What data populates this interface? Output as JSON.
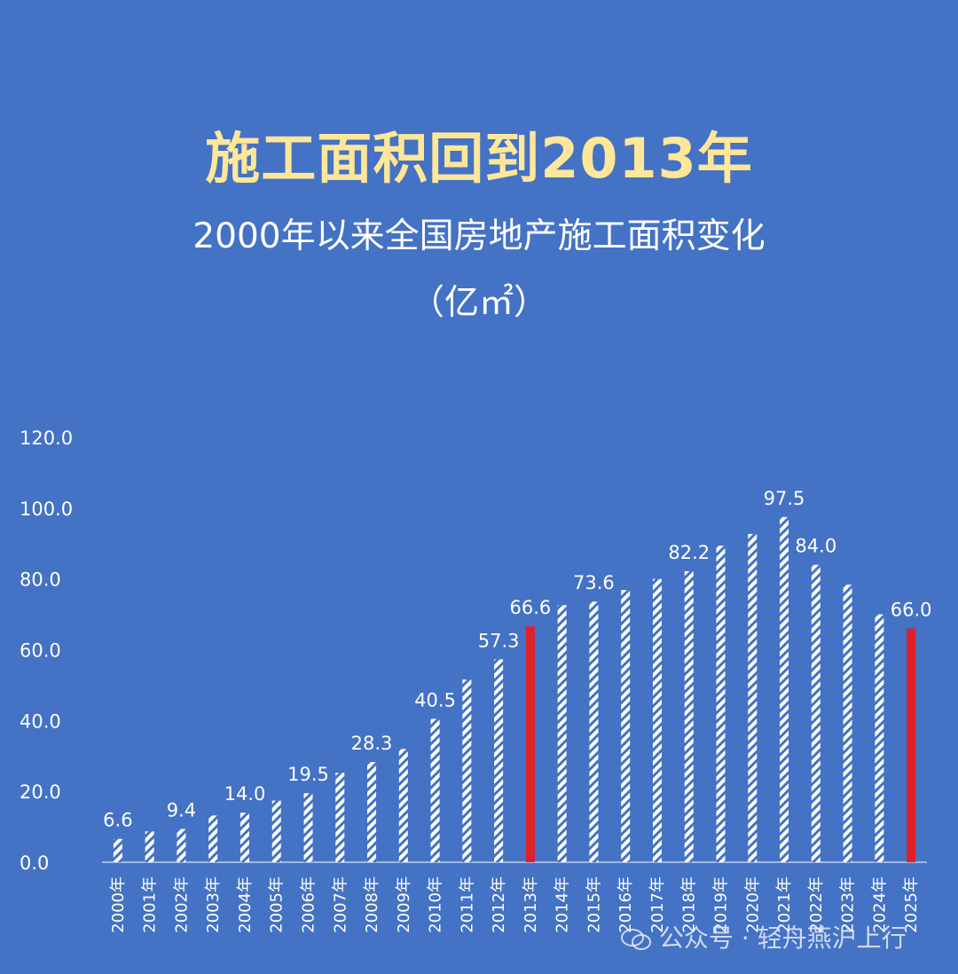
{
  "title": "施工面积回到2013年",
  "subtitle": "2000年以来全国房地产施工面积变化",
  "unit": "（亿㎡）",
  "watermark": "公众号 · 轻舟燕沪上行",
  "colors": {
    "background": "#4472C4",
    "title": "#FFE699",
    "bar_pattern": "#FFFFFF",
    "highlight": "#E0202A",
    "text": "#FFFFFF"
  },
  "chart_data": {
    "type": "bar",
    "categories": [
      "2000年",
      "2001年",
      "2002年",
      "2003年",
      "2004年",
      "2005年",
      "2006年",
      "2007年",
      "2008年",
      "2009年",
      "2010年",
      "2011年",
      "2012年",
      "2013年",
      "2014年",
      "2015年",
      "2016年",
      "2017年",
      "2018年",
      "2019年",
      "2020年",
      "2021年",
      "2022年",
      "2023年",
      "2024年",
      "2025年"
    ],
    "values": [
      6.6,
      8.7,
      9.4,
      13.2,
      14.0,
      17.4,
      19.5,
      25.3,
      28.3,
      32.0,
      40.5,
      51.6,
      57.3,
      66.6,
      72.6,
      73.6,
      76.9,
      80.0,
      82.2,
      89.4,
      92.7,
      97.5,
      84.0,
      78.4,
      70.0,
      66.0
    ],
    "data_labels": {
      "2000年": "6.6",
      "2002年": "9.4",
      "2004年": "14.0",
      "2006年": "19.5",
      "2008年": "28.3",
      "2010年": "40.5",
      "2012年": "57.3",
      "2013年": "66.6",
      "2015年": "73.6",
      "2018年": "82.2",
      "2021年": "97.5",
      "2022年": "84.0",
      "2025年": "66.0"
    },
    "highlighted": [
      "2013年",
      "2025年"
    ],
    "ylim": [
      0,
      120
    ],
    "yticks": [
      "0.0",
      "20.0",
      "40.0",
      "60.0",
      "80.0",
      "100.0",
      "120.0"
    ],
    "grid": false,
    "legend": "none"
  }
}
